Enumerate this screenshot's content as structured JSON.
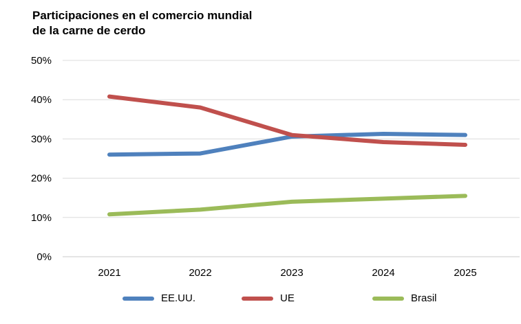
{
  "chart_data": {
    "type": "line",
    "title": "Participaciones en el comercio mundial de la carne de cerdo",
    "title_lines": [
      "Participaciones en el comercio mundial",
      "de la carne de cerdo"
    ],
    "categories": [
      "2021",
      "2022",
      "2023",
      "2024",
      "2025"
    ],
    "y_ticks": [
      "0%",
      "10%",
      "20%",
      "30%",
      "40%",
      "50%"
    ],
    "ylim": [
      0,
      50
    ],
    "grid": true,
    "legend_position": "bottom",
    "series": [
      {
        "name": "EE.UU.",
        "color": "#4f81bd",
        "values": [
          26.0,
          26.3,
          30.6,
          31.3,
          31.0
        ]
      },
      {
        "name": "UE",
        "color": "#c0504d",
        "values": [
          40.8,
          38.0,
          31.0,
          29.2,
          28.5
        ]
      },
      {
        "name": "Brasil",
        "color": "#9bbb59",
        "values": [
          10.8,
          12.0,
          14.0,
          14.8,
          15.5
        ]
      }
    ]
  }
}
